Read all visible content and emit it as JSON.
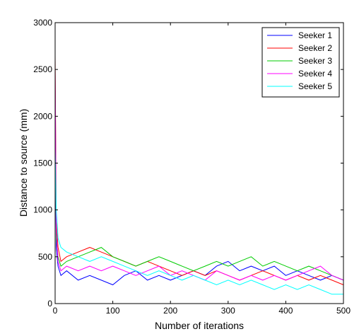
{
  "chart_data": {
    "type": "line",
    "title": "",
    "xlabel": "Number of iterations",
    "ylabel": "Distance to source (mm)",
    "xlim": [
      0,
      500
    ],
    "ylim": [
      0,
      3000
    ],
    "xticks": [
      0,
      100,
      200,
      300,
      400,
      500
    ],
    "yticks": [
      0,
      500,
      1000,
      1500,
      2000,
      2500,
      3000
    ],
    "grid": false,
    "legend_position": "top-right",
    "series": [
      {
        "name": "Seeker 1",
        "color": "#0000ff",
        "x": [
          0,
          2,
          5,
          10,
          20,
          40,
          60,
          80,
          100,
          120,
          140,
          160,
          180,
          200,
          220,
          240,
          260,
          280,
          300,
          320,
          340,
          360,
          380,
          400,
          420,
          440,
          460,
          480,
          500
        ],
        "y": [
          1750,
          600,
          400,
          300,
          350,
          250,
          300,
          250,
          200,
          300,
          350,
          250,
          300,
          250,
          300,
          350,
          300,
          400,
          450,
          350,
          400,
          350,
          400,
          300,
          350,
          300,
          250,
          300,
          250
        ]
      },
      {
        "name": "Seeker 2",
        "color": "#ff0000",
        "x": [
          0,
          2,
          5,
          10,
          20,
          40,
          60,
          80,
          100,
          120,
          140,
          160,
          180,
          200,
          220,
          240,
          260,
          280,
          300,
          320,
          340,
          360,
          380,
          400,
          420,
          440,
          460,
          480,
          500
        ],
        "y": [
          2650,
          900,
          600,
          450,
          500,
          550,
          600,
          550,
          500,
          450,
          400,
          450,
          400,
          350,
          300,
          350,
          300,
          350,
          300,
          250,
          300,
          350,
          300,
          250,
          300,
          250,
          300,
          250,
          200
        ]
      },
      {
        "name": "Seeker 3",
        "color": "#00cc00",
        "x": [
          0,
          2,
          5,
          10,
          20,
          40,
          60,
          80,
          100,
          120,
          140,
          160,
          180,
          200,
          220,
          240,
          260,
          280,
          300,
          320,
          340,
          360,
          380,
          400,
          420,
          440,
          460,
          480,
          500
        ],
        "y": [
          2300,
          700,
          500,
          400,
          450,
          500,
          550,
          600,
          500,
          450,
          400,
          450,
          500,
          450,
          400,
          350,
          400,
          450,
          400,
          450,
          500,
          400,
          450,
          400,
          350,
          400,
          350,
          300,
          250
        ]
      },
      {
        "name": "Seeker 4",
        "color": "#ff00ff",
        "x": [
          0,
          2,
          5,
          10,
          20,
          40,
          60,
          80,
          100,
          120,
          140,
          160,
          180,
          200,
          220,
          240,
          260,
          280,
          300,
          320,
          340,
          360,
          380,
          400,
          420,
          440,
          460,
          480,
          500
        ],
        "y": [
          2500,
          800,
          450,
          350,
          400,
          350,
          400,
          350,
          400,
          350,
          300,
          350,
          400,
          300,
          350,
          300,
          250,
          350,
          300,
          250,
          300,
          250,
          300,
          250,
          300,
          350,
          400,
          300,
          250
        ]
      },
      {
        "name": "Seeker 5",
        "color": "#00ffff",
        "x": [
          0,
          2,
          5,
          10,
          20,
          40,
          60,
          80,
          100,
          120,
          140,
          160,
          180,
          200,
          220,
          240,
          260,
          280,
          300,
          320,
          340,
          360,
          380,
          400,
          420,
          440,
          460,
          480,
          500
        ],
        "y": [
          1650,
          1000,
          700,
          600,
          550,
          500,
          450,
          500,
          450,
          400,
          350,
          300,
          350,
          300,
          250,
          300,
          250,
          200,
          250,
          200,
          250,
          200,
          150,
          200,
          150,
          200,
          150,
          100,
          100
        ]
      }
    ]
  }
}
